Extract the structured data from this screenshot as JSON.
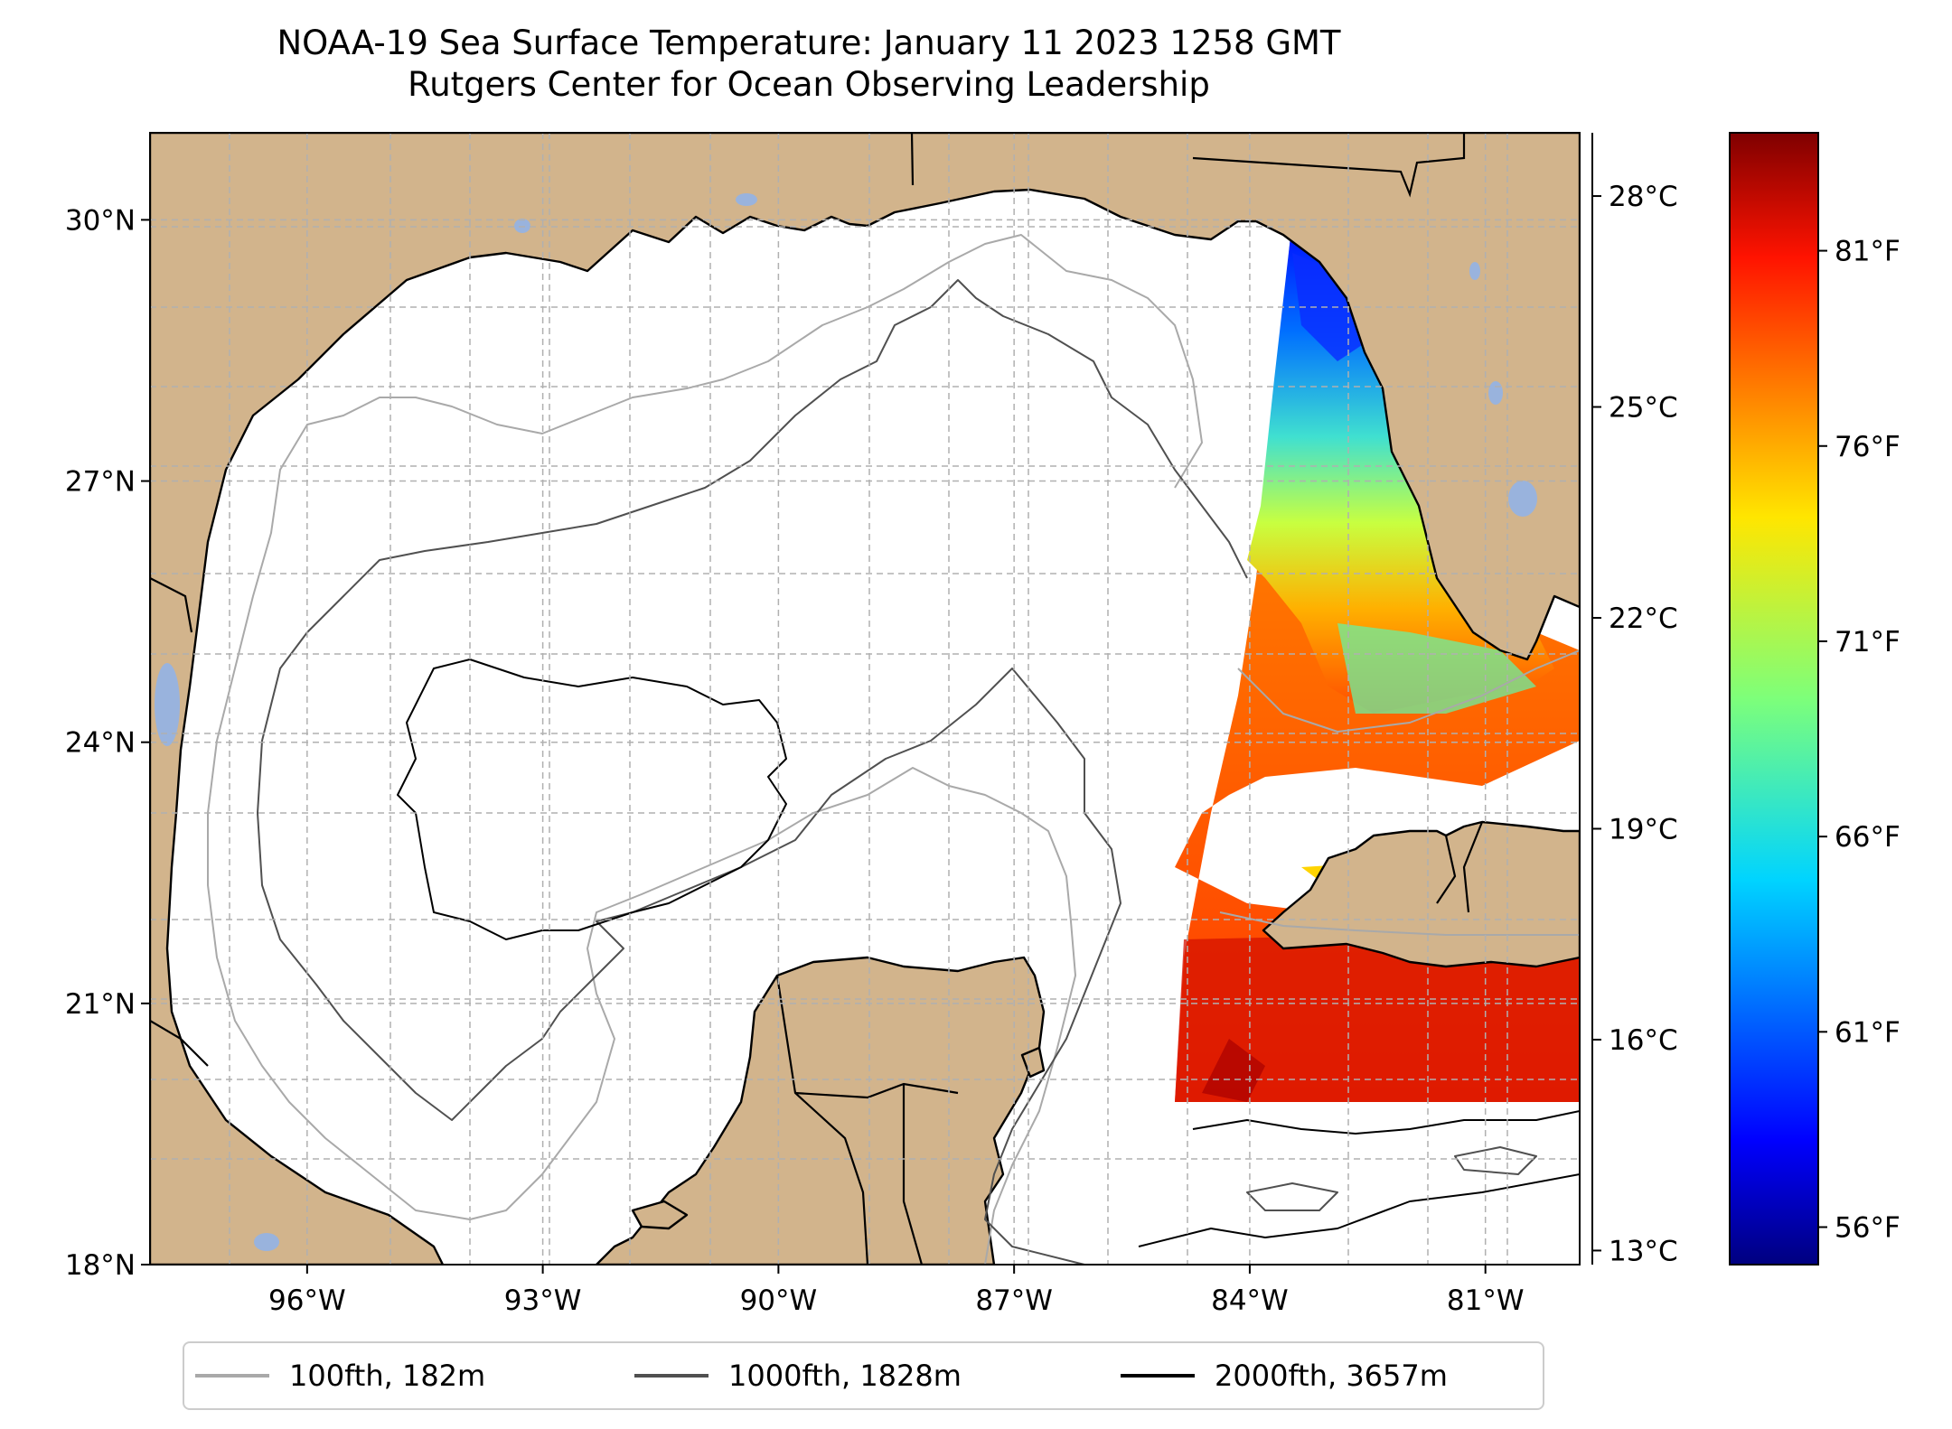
{
  "title": "NOAA-19 Sea Surface Temperature: January 11 2023 1258 GMT",
  "subtitle": "Rutgers Center for Ocean Observing Leadership",
  "map": {
    "lon_range": [
      -98.0,
      -79.8
    ],
    "lat_range": [
      18.0,
      31.0
    ],
    "lon_ticks": [
      {
        "value": -96,
        "label": "96°W"
      },
      {
        "value": -93,
        "label": "93°W"
      },
      {
        "value": -90,
        "label": "90°W"
      },
      {
        "value": -87,
        "label": "87°W"
      },
      {
        "value": -84,
        "label": "84°W"
      },
      {
        "value": -81,
        "label": "81°W"
      }
    ],
    "lat_ticks": [
      {
        "value": 18,
        "label": "18°N"
      },
      {
        "value": 21,
        "label": "21°N"
      },
      {
        "value": 24,
        "label": "24°N"
      },
      {
        "value": 27,
        "label": "27°N"
      },
      {
        "value": 30,
        "label": "30°N"
      }
    ],
    "gridlines": "dashed",
    "colors": {
      "land": "#d2b48c",
      "lakes": "#99b3dd",
      "water_no_data": "#ffffff",
      "coastline": "#000000"
    }
  },
  "colorbar": {
    "colormap": "jet",
    "celsius_range": [
      12.8,
      28.9
    ],
    "celsius_ticks": [
      {
        "value": 13,
        "label": "13°C"
      },
      {
        "value": 16,
        "label": "16°C"
      },
      {
        "value": 19,
        "label": "19°C"
      },
      {
        "value": 22,
        "label": "22°C"
      },
      {
        "value": 25,
        "label": "25°C"
      },
      {
        "value": 28,
        "label": "28°C"
      }
    ],
    "fahrenheit_ticks": [
      {
        "value": 56,
        "label": "56°F"
      },
      {
        "value": 61,
        "label": "61°F"
      },
      {
        "value": 66,
        "label": "66°F"
      },
      {
        "value": 71,
        "label": "71°F"
      },
      {
        "value": 76,
        "label": "76°F"
      },
      {
        "value": 81,
        "label": "81°F"
      }
    ]
  },
  "legend": {
    "placement": "bottom-center",
    "items": [
      {
        "label": "100fth, 182m",
        "color": "#a9a9a9"
      },
      {
        "label": "1000fth, 1828m",
        "color": "#505050"
      },
      {
        "label": "2000fth, 3657m",
        "color": "#000000"
      }
    ]
  }
}
